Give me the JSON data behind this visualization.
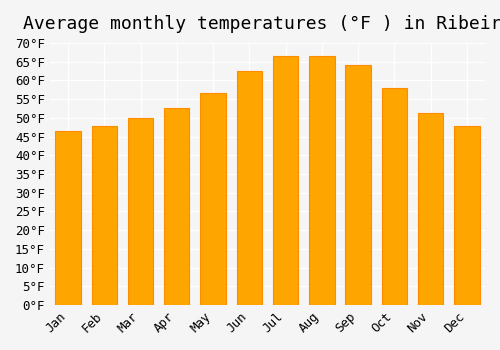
{
  "title": "Average monthly temperatures (°F ) in Ribeira",
  "months": [
    "Jan",
    "Feb",
    "Mar",
    "Apr",
    "May",
    "Jun",
    "Jul",
    "Aug",
    "Sep",
    "Oct",
    "Nov",
    "Dec"
  ],
  "values": [
    46.4,
    47.7,
    50.0,
    52.5,
    56.7,
    62.5,
    66.4,
    66.4,
    64.0,
    57.9,
    51.2,
    47.7
  ],
  "bar_color": "#FFA500",
  "bar_edge_color": "#FF8C00",
  "ylim": [
    0,
    70
  ],
  "yticks": [
    0,
    5,
    10,
    15,
    20,
    25,
    30,
    35,
    40,
    45,
    50,
    55,
    60,
    65,
    70
  ],
  "background_color": "#f5f5f5",
  "grid_color": "#ffffff",
  "title_fontsize": 13,
  "tick_fontsize": 9
}
